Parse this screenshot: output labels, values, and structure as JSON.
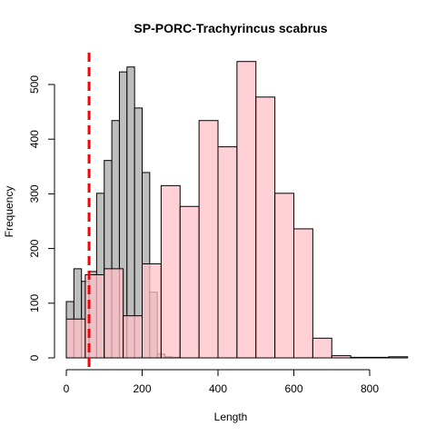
{
  "chart_data": {
    "type": "bar",
    "title": "SP-PORC-Trachyrincus scabrus",
    "xlabel": "Length",
    "ylabel": "Frequency",
    "xlim": [
      0,
      900
    ],
    "ylim": [
      0,
      550
    ],
    "x_ticks": [
      0,
      200,
      400,
      600,
      800
    ],
    "y_ticks": [
      0,
      100,
      200,
      300,
      400,
      500
    ],
    "grid": false,
    "legend": "none",
    "series": [
      {
        "color": "#bebebe",
        "bin_width": 20,
        "bins": [
          {
            "x0": 0,
            "x1": 20,
            "count": 103
          },
          {
            "x0": 20,
            "x1": 40,
            "count": 163
          },
          {
            "x0": 40,
            "x1": 60,
            "count": 140
          },
          {
            "x0": 60,
            "x1": 80,
            "count": 158
          },
          {
            "x0": 80,
            "x1": 100,
            "count": 301
          },
          {
            "x0": 100,
            "x1": 120,
            "count": 361
          },
          {
            "x0": 120,
            "x1": 140,
            "count": 434
          },
          {
            "x0": 140,
            "x1": 160,
            "count": 523
          },
          {
            "x0": 160,
            "x1": 180,
            "count": 532
          },
          {
            "x0": 180,
            "x1": 200,
            "count": 457
          },
          {
            "x0": 200,
            "x1": 220,
            "count": 339
          },
          {
            "x0": 220,
            "x1": 240,
            "count": 120
          },
          {
            "x0": 240,
            "x1": 260,
            "count": 7
          },
          {
            "x0": 260,
            "x1": 280,
            "count": 2
          },
          {
            "x0": 280,
            "x1": 300,
            "count": 1
          }
        ]
      },
      {
        "color": "#ffc0c8",
        "bin_width": 50,
        "bins": [
          {
            "x0": 0,
            "x1": 50,
            "count": 71
          },
          {
            "x0": 50,
            "x1": 100,
            "count": 152
          },
          {
            "x0": 100,
            "x1": 150,
            "count": 163
          },
          {
            "x0": 150,
            "x1": 200,
            "count": 77
          },
          {
            "x0": 200,
            "x1": 250,
            "count": 172
          },
          {
            "x0": 250,
            "x1": 300,
            "count": 315
          },
          {
            "x0": 300,
            "x1": 350,
            "count": 277
          },
          {
            "x0": 350,
            "x1": 400,
            "count": 434
          },
          {
            "x0": 400,
            "x1": 450,
            "count": 386
          },
          {
            "x0": 450,
            "x1": 500,
            "count": 542
          },
          {
            "x0": 500,
            "x1": 550,
            "count": 477
          },
          {
            "x0": 550,
            "x1": 600,
            "count": 301
          },
          {
            "x0": 600,
            "x1": 650,
            "count": 236
          },
          {
            "x0": 650,
            "x1": 700,
            "count": 36
          },
          {
            "x0": 700,
            "x1": 750,
            "count": 4
          },
          {
            "x0": 750,
            "x1": 800,
            "count": 1
          },
          {
            "x0": 800,
            "x1": 850,
            "count": 1
          },
          {
            "x0": 850,
            "x1": 900,
            "count": 2
          }
        ]
      }
    ],
    "reference_line": {
      "x": 60,
      "color": "#ff0000",
      "style": "dashed"
    }
  }
}
